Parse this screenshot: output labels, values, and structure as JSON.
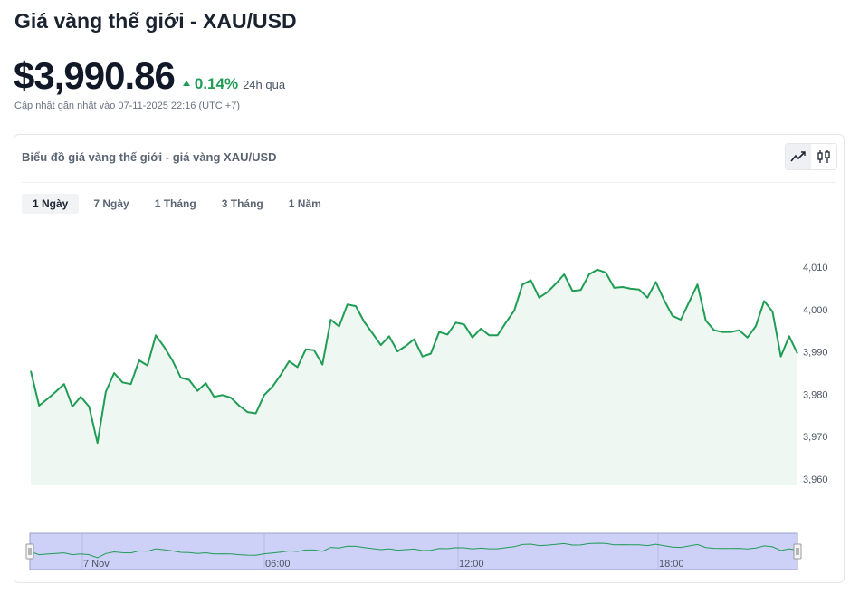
{
  "page_title": "Giá vàng thế giới - XAU/USD",
  "price": "$3,990.86",
  "change": "0.14%",
  "change_period": "24h qua",
  "updated": "Cập nhật gần nhất vào 07-11-2025 22:16 (UTC +7)",
  "card_title": "Biểu đồ giá vàng thế giới - giá vàng XAU/USD",
  "chart_type_toggle": [
    "line-chart-icon",
    "candlestick-icon"
  ],
  "ranges": [
    {
      "label": "1 Ngày",
      "active": true
    },
    {
      "label": "7 Ngày",
      "active": false
    },
    {
      "label": "1 Tháng",
      "active": false
    },
    {
      "label": "3 Tháng",
      "active": false
    },
    {
      "label": "1 Năm",
      "active": false
    }
  ],
  "colors": {
    "line": "#1f9d55",
    "area": "#eef7f1",
    "up": "#1f9d55",
    "navigator_bg": "#cdd0f7",
    "navigator_line": "#1f9d55"
  },
  "chart_data": {
    "type": "line",
    "series": [
      {
        "values": [
          3985.5,
          3977.3,
          3978.9,
          3980.6,
          3982.4,
          3977.1,
          3979.4,
          3977.1,
          3968.5,
          3980.6,
          3985.0,
          3982.8,
          3982.4,
          3988.0,
          3986.8,
          3993.9,
          3991.2,
          3988.0,
          3983.9,
          3983.4,
          3980.8,
          3982.6,
          3979.4,
          3979.8,
          3979.2,
          3977.3,
          3975.8,
          3975.5,
          3979.8,
          3981.8,
          3984.6,
          3987.8,
          3986.4,
          3990.6,
          3990.4,
          3987.0,
          3997.6,
          3996.0,
          4001.2,
          4000.8,
          3997.1,
          3994.4,
          3991.6,
          3993.7,
          3990.1,
          3991.4,
          3993.0,
          3988.9,
          3989.6,
          3994.7,
          3994.1,
          3996.9,
          3996.5,
          3993.4,
          3995.5,
          3993.9,
          3993.9,
          3996.9,
          3999.7,
          4005.9,
          4006.9,
          4002.8,
          4004.1,
          4006.1,
          4008.3,
          4004.4,
          4004.6,
          4008.3,
          4009.4,
          4008.7,
          4005.1,
          4005.3,
          4004.9,
          4004.7,
          4002.8,
          4006.5,
          4002.2,
          3998.5,
          3997.6,
          4001.8,
          4005.9,
          3997.4,
          3995.1,
          3994.7,
          3994.7,
          3995.1,
          3993.4,
          3996.1,
          4002.0,
          3999.5,
          3988.9,
          3993.7,
          3989.6
        ]
      }
    ],
    "yticks": [
      "4,010",
      "4,000",
      "3,990",
      "3,980",
      "3,970",
      "3,960"
    ],
    "ylim": [
      3958,
      4017
    ],
    "navigator_labels": [
      "7 Nov",
      "06:00",
      "12:00",
      "18:00"
    ],
    "grid": false
  }
}
